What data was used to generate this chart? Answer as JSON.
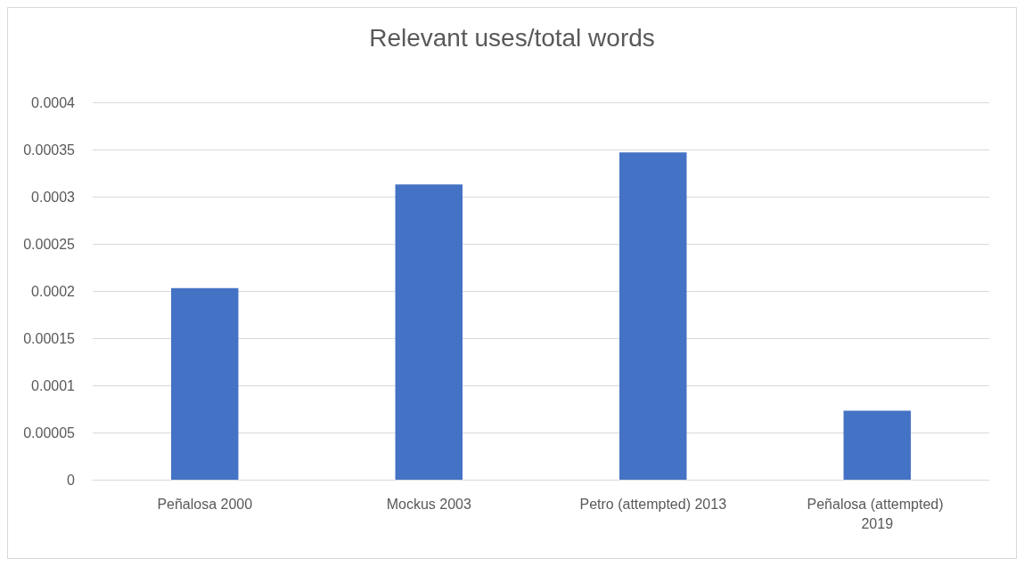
{
  "chart_data": {
    "type": "bar",
    "title": "Relevant uses/total words",
    "categories": [
      "Peñalosa 2000",
      "Mockus 2003",
      "Petro (attempted) 2013",
      "Peñalosa (attempted) 2019"
    ],
    "values": [
      0.000203,
      0.000313,
      0.000347,
      7.3e-05
    ],
    "color": "#4472c4",
    "ylim": [
      0,
      0.0004
    ],
    "yticks": [
      0,
      {
        "value": 5e-05,
        "label": "0.00005"
      },
      0.0001,
      0.00015,
      0.0002,
      0.00025,
      0.0003,
      0.00035,
      0.0004
    ],
    "grid": "y"
  }
}
